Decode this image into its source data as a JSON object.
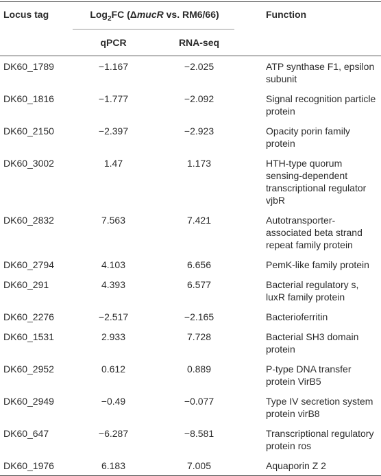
{
  "table": {
    "header": [
      "Locus tag",
      "qPCR",
      "RNA-seq",
      "Function"
    ],
    "group_header": [
      "Log",
      "2",
      "FC (Δ",
      "mucR",
      " vs. RM6/66)"
    ],
    "rows": [
      [
        "DK60_1789",
        "−1.167",
        "−2.025",
        "ATP synthase F1, epsilon subunit"
      ],
      [
        "DK60_1816",
        "−1.777",
        "−2.092",
        "Signal recognition particle protein"
      ],
      [
        "DK60_2150",
        "−2.397",
        "−2.923",
        "Opacity porin family protein"
      ],
      [
        "DK60_3002",
        "1.47",
        "1.173",
        "HTH-type quorum sensing-dependent transcriptional regulator vjbR"
      ],
      [
        "DK60_2832",
        "7.563",
        "7.421",
        "Autotransporter-associated beta strand repeat family protein"
      ],
      [
        "DK60_2794",
        "4.103",
        "6.656",
        "PemK-like family protein"
      ],
      [
        "DK60_291",
        "4.393",
        "6.577",
        "Bacterial regulatory s, luxR family protein"
      ],
      [
        "DK60_2276",
        "−2.517",
        "−2.165",
        "Bacterioferritin"
      ],
      [
        "DK60_1531",
        "2.933",
        "7.728",
        "Bacterial SH3 domain protein"
      ],
      [
        "DK60_2952",
        "0.612",
        "0.889",
        "P-type DNA transfer protein VirB5"
      ],
      [
        "DK60_2949",
        "−0.49",
        "−0.077",
        "Type IV secretion system protein virB8"
      ],
      [
        "DK60_647",
        "−6.287",
        "−8.581",
        "Transcriptional regulatory protein ros"
      ],
      [
        "DK60_1976",
        "6.183",
        "7.005",
        "Aquaporin Z 2"
      ]
    ]
  }
}
